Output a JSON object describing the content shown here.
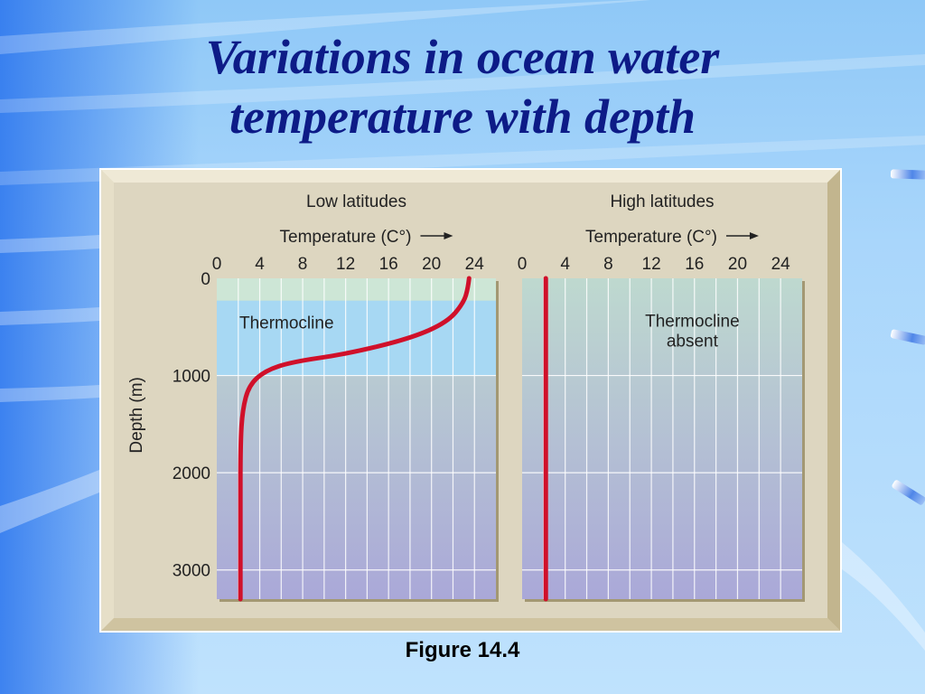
{
  "slide": {
    "title_line1": "Variations in ocean water",
    "title_line2": "temperature with depth",
    "caption": "Figure 14.4"
  },
  "colors": {
    "title": "#0d1b87",
    "frame": "#ddd6c0",
    "curve": "#d0102a",
    "thermocline_band": "#a7d8f3",
    "surface_band": "#cde6d6",
    "deep_water": "#aaa8d8"
  },
  "chart_data": [
    {
      "type": "line",
      "title": "Low latitudes",
      "xlabel": "Temperature (C°)",
      "ylabel": "Depth (m)",
      "xlim": [
        0,
        26
      ],
      "ylim": [
        0,
        3300
      ],
      "y_inverted": true,
      "xticks": [
        "0",
        "4",
        "8",
        "12",
        "16",
        "20",
        "24"
      ],
      "yticks": [
        "0",
        "1000",
        "2000",
        "3000"
      ],
      "annotations": [
        "Thermocline"
      ],
      "bands": [
        {
          "name": "surface",
          "from": 0,
          "to": 230
        },
        {
          "name": "thermocline",
          "from": 230,
          "to": 1000
        }
      ],
      "series": [
        {
          "x": [
            23.5,
            23.4,
            23.0,
            21.5,
            18.0,
            12.0,
            7.0,
            4.5,
            3.0,
            2.4,
            2.2,
            2.2,
            2.2
          ],
          "y": [
            0,
            100,
            250,
            450,
            620,
            780,
            860,
            950,
            1100,
            1350,
            1700,
            2500,
            3300
          ]
        }
      ]
    },
    {
      "type": "line",
      "title": "High latitudes",
      "xlabel": "Temperature (C°)",
      "xlim": [
        0,
        26
      ],
      "ylim": [
        0,
        3300
      ],
      "y_inverted": true,
      "xticks": [
        "0",
        "4",
        "8",
        "12",
        "16",
        "20",
        "24"
      ],
      "annotations": [
        "Thermocline",
        "absent"
      ],
      "series": [
        {
          "x": [
            2.2,
            2.2
          ],
          "y": [
            0,
            3300
          ]
        }
      ]
    }
  ]
}
